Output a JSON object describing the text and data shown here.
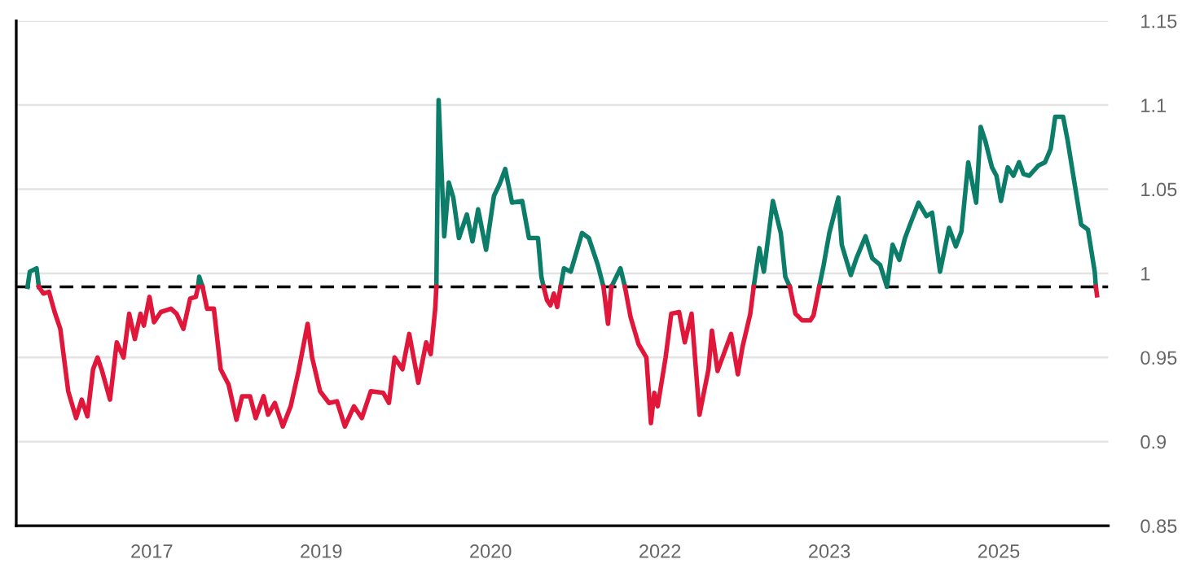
{
  "chart_data": {
    "type": "line",
    "series": [
      {
        "color": "#0b7d68",
        "x": [
          2016.4,
          2016.42,
          2016.48,
          2016.5,
          2017.2,
          2017.91,
          2017.92,
          2017.95,
          2019.0,
          2020.02,
          2020.04,
          2020.09,
          2020.13,
          2020.17,
          2020.22,
          2020.29,
          2020.34,
          2020.39,
          2020.46,
          2020.53,
          2020.58,
          2020.63,
          2020.69,
          2020.78,
          2020.84,
          2020.92,
          2020.95,
          2020.97,
          2021.05,
          2021.12,
          2021.15,
          2021.21,
          2021.31,
          2021.37,
          2021.45,
          2021.5,
          2021.54,
          2021.57,
          2021.65,
          2021.69,
          2022.3,
          2022.83,
          2022.88,
          2022.92,
          2023.0,
          2023.07,
          2023.11,
          2023.15,
          2023.3,
          2023.41,
          2023.45,
          2023.5,
          2023.58,
          2023.61,
          2023.69,
          2023.74,
          2023.82,
          2023.88,
          2023.95,
          2024.01,
          2024.06,
          2024.12,
          2024.17,
          2024.22,
          2024.29,
          2024.36,
          2024.41,
          2024.48,
          2024.56,
          2024.62,
          2024.67,
          2024.73,
          2024.8,
          2024.84,
          2024.88,
          2024.94,
          2024.98,
          2025.02,
          2025.08,
          2025.13,
          2025.18,
          2025.22,
          2025.27,
          2025.35,
          2025.41,
          2025.46,
          2025.5,
          2025.57,
          2025.61,
          2025.67,
          2025.73,
          2025.79,
          2025.85,
          2025.86
        ],
        "values": [
          0.992,
          1.001,
          1.003,
          0.992,
          null,
          0.992,
          0.998,
          0.992,
          null,
          0.992,
          1.103,
          1.022,
          1.054,
          1.045,
          1.021,
          1.035,
          1.019,
          1.038,
          1.014,
          1.046,
          1.053,
          1.062,
          1.042,
          1.043,
          1.021,
          1.021,
          0.998,
          0.992,
          null,
          0.992,
          1.003,
          1.001,
          1.024,
          1.021,
          1.005,
          0.992,
          null,
          0.992,
          1.003,
          0.992,
          null,
          0.992,
          1.015,
          1.001,
          1.043,
          1.024,
          0.998,
          0.992,
          null,
          0.992,
          1.005,
          1.024,
          1.045,
          1.017,
          0.999,
          1.009,
          1.022,
          1.009,
          1.005,
          0.992,
          1.017,
          1.008,
          1.021,
          1.03,
          1.042,
          1.034,
          1.036,
          1.001,
          1.027,
          1.016,
          1.025,
          1.066,
          1.042,
          1.087,
          1.079,
          1.063,
          1.058,
          1.043,
          1.063,
          1.058,
          1.066,
          1.059,
          1.058,
          1.064,
          1.066,
          1.074,
          1.093,
          1.093,
          1.079,
          1.054,
          1.029,
          1.026,
          1.001,
          0.992
        ]
      },
      {
        "color": "#e0173a",
        "x": [
          2016.5,
          2016.54,
          2016.59,
          2016.64,
          2016.69,
          2016.76,
          2016.83,
          2016.88,
          2016.93,
          2016.98,
          2017.02,
          2017.06,
          2017.13,
          2017.19,
          2017.25,
          2017.3,
          2017.35,
          2017.4,
          2017.43,
          2017.48,
          2017.52,
          2017.58,
          2017.67,
          2017.72,
          2017.78,
          2017.84,
          2017.89,
          2017.91,
          2017.93,
          2017.95,
          2017.99,
          2018.05,
          2018.11,
          2018.18,
          2018.25,
          2018.3,
          2018.37,
          2018.42,
          2018.49,
          2018.53,
          2018.59,
          2018.66,
          2018.73,
          2018.8,
          2018.88,
          2018.92,
          2018.99,
          2019.07,
          2019.14,
          2019.21,
          2019.29,
          2019.36,
          2019.44,
          2019.55,
          2019.6,
          2019.65,
          2019.72,
          2019.78,
          2019.86,
          2019.93,
          2019.97,
          2020.01,
          2020.02,
          2020.5,
          2020.97,
          2021.0,
          2021.03,
          2021.06,
          2021.09,
          2021.12,
          2021.3,
          2021.5,
          2021.54,
          2021.57,
          2021.63,
          2021.69,
          2021.74,
          2021.81,
          2021.88,
          2021.92,
          2021.95,
          2021.98,
          2022.05,
          2022.1,
          2022.17,
          2022.22,
          2022.28,
          2022.35,
          2022.43,
          2022.46,
          2022.51,
          2022.57,
          2022.63,
          2022.69,
          2022.73,
          2022.8,
          2022.83,
          2023.0,
          2023.15,
          2023.2,
          2023.26,
          2023.33,
          2023.36,
          2023.41,
          2024.5,
          2025.86,
          2025.87
        ],
        "values": [
          0.992,
          0.988,
          0.989,
          0.977,
          0.967,
          0.93,
          0.914,
          0.925,
          0.915,
          0.943,
          0.95,
          0.942,
          0.925,
          0.959,
          0.95,
          0.976,
          0.961,
          0.976,
          0.969,
          0.986,
          0.971,
          0.977,
          0.979,
          0.976,
          0.967,
          0.985,
          0.986,
          0.992,
          null,
          0.992,
          0.979,
          0.979,
          0.943,
          0.934,
          0.913,
          0.927,
          0.927,
          0.914,
          0.927,
          0.916,
          0.923,
          0.909,
          0.921,
          0.942,
          0.97,
          0.95,
          0.93,
          0.923,
          0.924,
          0.909,
          0.921,
          0.914,
          0.93,
          0.929,
          0.923,
          0.95,
          0.943,
          0.964,
          0.935,
          0.959,
          0.952,
          0.979,
          0.992,
          null,
          0.992,
          0.984,
          0.981,
          0.988,
          0.98,
          0.992,
          null,
          0.992,
          0.97,
          0.992,
          null,
          0.992,
          0.974,
          0.958,
          0.95,
          0.911,
          0.929,
          0.921,
          0.95,
          0.976,
          0.977,
          0.959,
          0.976,
          0.916,
          0.943,
          0.966,
          0.942,
          0.953,
          0.964,
          0.94,
          0.956,
          0.976,
          0.992,
          null,
          0.992,
          0.976,
          0.972,
          0.972,
          0.975,
          0.992,
          null,
          0.992,
          0.987
        ]
      }
    ],
    "xlim": [
      2016.3,
      2025.97
    ],
    "xticks": [
      {
        "value": 2017.5,
        "label": "2017"
      },
      {
        "value": 2019.0,
        "label": "2019"
      },
      {
        "value": 2020.5,
        "label": "2020"
      },
      {
        "value": 2022.0,
        "label": "2022"
      },
      {
        "value": 2023.5,
        "label": "2023"
      },
      {
        "value": 2025.0,
        "label": "2025"
      }
    ],
    "ylim": [
      0.85,
      1.15
    ],
    "yticks": [
      0.85,
      0.9,
      0.95,
      1,
      1.05,
      1.1,
      1.15
    ],
    "grid": "y",
    "marker": "none",
    "line_style": "solid",
    "ref_lines": [
      {
        "axis": "y",
        "value": 0.992,
        "label": null,
        "color": "#000000",
        "line_style": "dashed"
      }
    ]
  }
}
